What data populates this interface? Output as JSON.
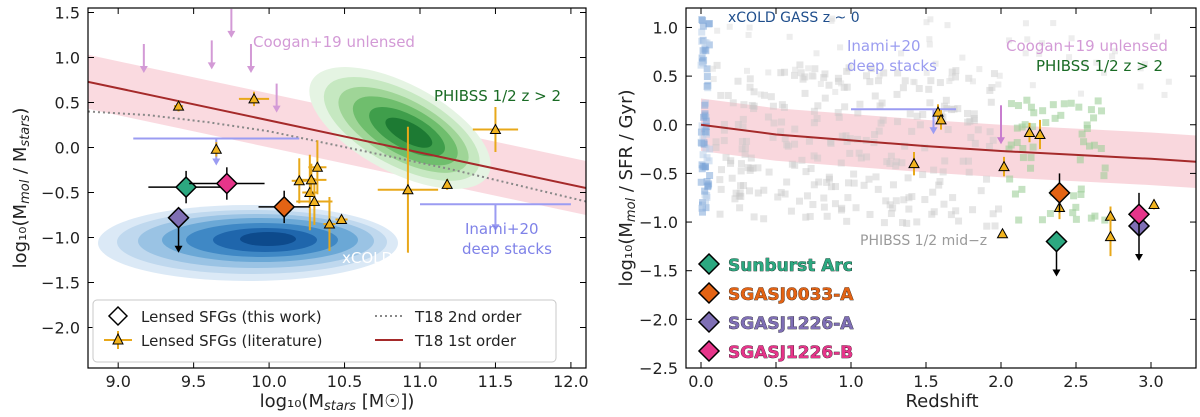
{
  "chart_data": [
    {
      "type": "scatter",
      "xlabel": "log₁₀(M",
      "xlabel_sub": "stars",
      "xlabel_tail": " [M☉])",
      "ylabel": "log₁₀(M",
      "ylabel_sub1": "mol",
      "ylabel_mid": " / M",
      "ylabel_sub2": "stars",
      "ylabel_tail": ")",
      "xlim": [
        8.8,
        12.1
      ],
      "ylim": [
        -2.45,
        1.55
      ],
      "xticks": [
        9.0,
        9.5,
        10.0,
        10.5,
        11.0,
        11.5,
        12.0
      ],
      "xtick_labels": [
        "9.0",
        "9.5",
        "10.0",
        "10.5",
        "11.0",
        "11.5",
        "12.0"
      ],
      "yticks": [
        -2.0,
        -1.5,
        -1.0,
        -0.5,
        0.0,
        0.5,
        1.0,
        1.5
      ],
      "ytick_labels": [
        "−2.0",
        "−1.5",
        "−1.0",
        "−0.5",
        "0.0",
        "0.5",
        "1.0",
        "1.5"
      ],
      "annotations": {
        "coogan": "Coogan+19 unlensed",
        "phibss": "PHIBSS 1/2 z > 2",
        "xcold_line1": "xCOLD GASS",
        "xcold_line2": "z ~ 0",
        "inami_line1": "Inami+20",
        "inami_line2": "deep stacks"
      },
      "legend": {
        "this_work": "Lensed SFGs (this work)",
        "literature": "Lensed SFGs (literature)",
        "t18_2nd": "T18 2nd order",
        "t18_1st": "T18 1st order"
      },
      "this_work": [
        {
          "name": "Sunburst Arc",
          "x": 9.45,
          "y": -0.44,
          "xerr": 0.25,
          "yerr": 0.18,
          "color": "#2ca880",
          "upper_limit": false
        },
        {
          "name": "SGASJ1226-B",
          "x": 9.72,
          "y": -0.4,
          "xerr": 0.25,
          "yerr": 0.18,
          "color": "#e6358a",
          "upper_limit": false
        },
        {
          "name": "SGASJ0033-A",
          "x": 10.1,
          "y": -0.66,
          "xerr": 0.17,
          "yerr": 0.18,
          "color": "#e36314",
          "upper_limit": false
        },
        {
          "name": "SGASJ1226-A",
          "x": 9.4,
          "y": -0.78,
          "xerr": 0.0,
          "yerr": 0.0,
          "color": "#7f6fb5",
          "upper_limit": true
        }
      ],
      "literature": [
        {
          "x": 9.4,
          "y": 0.46,
          "xerr": 0.03,
          "yerr": 0.06
        },
        {
          "x": 9.65,
          "y": -0.02,
          "xerr": 0.02,
          "yerr": 0.08
        },
        {
          "x": 9.9,
          "y": 0.54,
          "xerr": 0.1,
          "yerr": 0.08
        },
        {
          "x": 10.27,
          "y": -0.5,
          "xerr": 0.05,
          "yerr": 0.42
        },
        {
          "x": 10.32,
          "y": -0.22,
          "xerr": 0.06,
          "yerr": 0.3
        },
        {
          "x": 10.3,
          "y": -0.6,
          "xerr": 0.12,
          "yerr": 0.26
        },
        {
          "x": 10.28,
          "y": -0.36,
          "xerr": 0.1,
          "yerr": 0.18
        },
        {
          "x": 10.2,
          "y": -0.37,
          "xerr": 0.05,
          "yerr": 0.25
        },
        {
          "x": 10.4,
          "y": -0.85,
          "xerr": 0.04,
          "yerr": 0.3
        },
        {
          "x": 10.48,
          "y": -0.8,
          "xerr": 0.04,
          "yerr": 0.05
        },
        {
          "x": 10.92,
          "y": -0.47,
          "xerr": 0.2,
          "yerr": 0.7
        },
        {
          "x": 11.18,
          "y": -0.41,
          "xerr": 0.02,
          "yerr": 0.06
        },
        {
          "x": 11.5,
          "y": 0.2,
          "xerr": 0.15,
          "yerr": 0.25
        }
      ],
      "coogan_upper_limits": [
        {
          "x": 9.17,
          "y": 0.95
        },
        {
          "x": 9.62,
          "y": 0.99
        },
        {
          "x": 9.75,
          "y": 1.34
        },
        {
          "x": 9.88,
          "y": 0.95
        },
        {
          "x": 10.05,
          "y": 0.51
        }
      ],
      "inami_stacks": [
        {
          "x": 9.65,
          "y": 0.1,
          "xerr": 0.55
        },
        {
          "x": 11.5,
          "y": -0.63,
          "xerr": 0.5
        }
      ],
      "t18_1st": {
        "x": [
          8.8,
          12.1
        ],
        "y": [
          0.73,
          -0.45
        ],
        "band_halfwidth": 0.3
      },
      "t18_2nd": {
        "x": [
          8.8,
          9.2,
          9.6,
          10.0,
          10.4,
          10.8,
          11.2,
          11.6,
          12.1
        ],
        "y": [
          0.4,
          0.36,
          0.28,
          0.18,
          0.04,
          -0.1,
          -0.24,
          -0.4,
          -0.6
        ]
      }
    },
    {
      "type": "scatter",
      "xlabel": "Redshift",
      "ylabel": "log₁₀(M",
      "ylabel_sub": "mol",
      "ylabel_tail": " / SFR / Gyr)",
      "xlim": [
        -0.1,
        3.3
      ],
      "ylim": [
        -2.5,
        1.2
      ],
      "xticks": [
        0.0,
        0.5,
        1.0,
        1.5,
        2.0,
        2.5,
        3.0
      ],
      "xtick_labels": [
        "0.0",
        "0.5",
        "1.0",
        "1.5",
        "2.0",
        "2.5",
        "3.0"
      ],
      "yticks": [
        -2.5,
        -2.0,
        -1.5,
        -1.0,
        -0.5,
        0.0,
        0.5,
        1.0
      ],
      "ytick_labels": [
        "−2.5",
        "−2.0",
        "−1.5",
        "−1.0",
        "−0.5",
        "0.0",
        "0.5",
        "1.0"
      ],
      "annotations": {
        "xcold": "xCOLD GASS z ~ 0",
        "inami_line1": "Inami+20",
        "inami_line2": "deep stacks",
        "coogan": "Coogan+19 unlensed",
        "phibss": "PHIBSS 1/2 z > 2",
        "phibss_mid": "PHIBSS 1/2 mid−z"
      },
      "legend": [
        {
          "name": "Sunburst Arc",
          "color": "#2ca880"
        },
        {
          "name": "SGASJ0033-A",
          "color": "#e36314"
        },
        {
          "name": "SGASJ1226-A",
          "color": "#7f6fb5"
        },
        {
          "name": "SGASJ1226-B",
          "color": "#e6358a"
        }
      ],
      "this_work": [
        {
          "name": "Sunburst Arc",
          "x": 2.37,
          "y": -1.2,
          "yerr": 0.0,
          "color": "#2ca880",
          "upper_limit": true
        },
        {
          "name": "SGASJ0033-A",
          "x": 2.39,
          "y": -0.7,
          "yerr": 0.2,
          "color": "#e36314",
          "upper_limit": false
        },
        {
          "name": "SGASJ1226-A",
          "x": 2.92,
          "y": -1.04,
          "yerr": 0.0,
          "color": "#7f6fb5",
          "upper_limit": true
        },
        {
          "name": "SGASJ1226-B",
          "x": 2.92,
          "y": -0.92,
          "yerr": 0.22,
          "color": "#e6358a",
          "upper_limit": false
        }
      ],
      "literature": [
        {
          "x": 1.42,
          "y": -0.4,
          "yerr": 0.12
        },
        {
          "x": 1.58,
          "y": 0.13,
          "yerr": 0.08
        },
        {
          "x": 1.6,
          "y": 0.05,
          "yerr": 0.1
        },
        {
          "x": 2.02,
          "y": -0.43,
          "yerr": 0.1
        },
        {
          "x": 2.01,
          "y": -1.12,
          "yerr": 0.04
        },
        {
          "x": 2.19,
          "y": -0.08,
          "yerr": 0.1
        },
        {
          "x": 2.26,
          "y": -0.1,
          "yerr": 0.15
        },
        {
          "x": 2.39,
          "y": -0.85,
          "yerr": 0.12
        },
        {
          "x": 2.73,
          "y": -0.94,
          "yerr": 0.1
        },
        {
          "x": 2.73,
          "y": -1.15,
          "yerr": 0.2
        },
        {
          "x": 3.02,
          "y": -0.82,
          "yerr": 0.05
        }
      ],
      "inami_stack": {
        "x": 1.35,
        "y": 0.16,
        "xerr": 0.35
      },
      "coogan_limits": [
        {
          "x": 2.0,
          "y": 0.2
        }
      ],
      "t18_1st": {
        "x": [
          0.0,
          0.5,
          1.0,
          1.5,
          2.0,
          2.5,
          3.0,
          3.3
        ],
        "y": [
          0.0,
          -0.1,
          -0.16,
          -0.22,
          -0.27,
          -0.31,
          -0.35,
          -0.38
        ],
        "band_halfwidth": 0.27
      }
    }
  ]
}
